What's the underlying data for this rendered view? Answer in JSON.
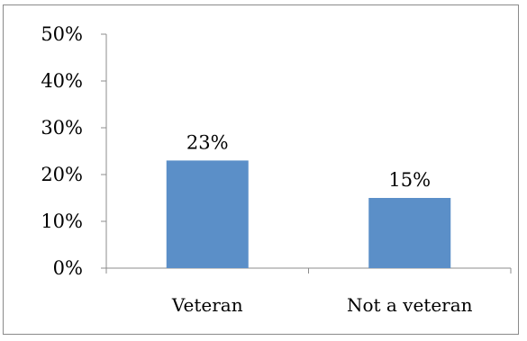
{
  "chart_data": {
    "type": "bar",
    "categories": [
      "Veteran",
      "Not a veteran"
    ],
    "values": [
      23,
      15
    ],
    "data_labels": [
      "23%",
      "15%"
    ],
    "ylim": [
      0,
      50
    ],
    "yticks": [
      0,
      10,
      20,
      30,
      40,
      50
    ],
    "ytick_labels": [
      "0%",
      "10%",
      "20%",
      "30%",
      "40%",
      "50%"
    ],
    "title": "",
    "xlabel": "",
    "ylabel": "",
    "grid": false,
    "legend": "none",
    "bar_color": "#5b8fc8",
    "axis_color": "#8c8c8c"
  }
}
